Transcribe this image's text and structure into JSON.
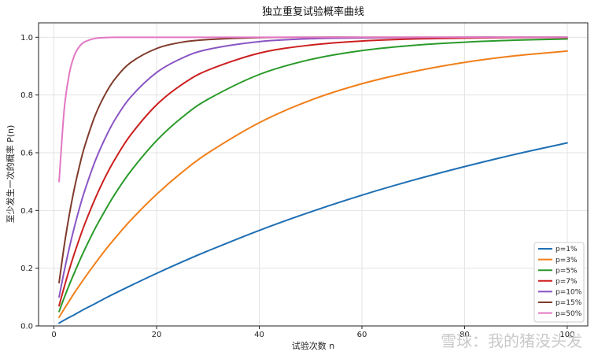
{
  "chart_data": {
    "type": "line",
    "title": "独立重复试验概率曲线",
    "xlabel": "试验次数 n",
    "ylabel": "至少发生一次的概率 P(n)",
    "xlim": [
      -3,
      104
    ],
    "ylim": [
      0,
      1.05
    ],
    "xticks": [
      0,
      20,
      40,
      60,
      80,
      100
    ],
    "yticks": [
      0.0,
      0.2,
      0.4,
      0.6,
      0.8,
      1.0
    ],
    "xtick_labels": [
      "0",
      "20",
      "40",
      "60",
      "80",
      "100"
    ],
    "ytick_labels": [
      "0.0",
      "0.2",
      "0.4",
      "0.6",
      "0.8",
      "1.0"
    ],
    "grid": true,
    "legend_position": "lower-right",
    "x": [
      1,
      2,
      3,
      4,
      5,
      6,
      8,
      10,
      12,
      15,
      20,
      25,
      30,
      40,
      50,
      60,
      70,
      80,
      90,
      100
    ],
    "series": [
      {
        "name": "p=1%",
        "color": "#1f6fb4",
        "values": [
          0.01,
          0.02,
          0.03,
          0.039,
          0.049,
          0.059,
          0.077,
          0.096,
          0.114,
          0.14,
          0.182,
          0.222,
          0.26,
          0.331,
          0.395,
          0.453,
          0.505,
          0.552,
          0.595,
          0.634
        ]
      },
      {
        "name": "p=3%",
        "color": "#f07f1a",
        "values": [
          0.03,
          0.059,
          0.087,
          0.115,
          0.141,
          0.167,
          0.216,
          0.263,
          0.306,
          0.367,
          0.456,
          0.533,
          0.599,
          0.704,
          0.782,
          0.839,
          0.881,
          0.913,
          0.936,
          0.952
        ]
      },
      {
        "name": "p=5%",
        "color": "#2a9a2a",
        "values": [
          0.05,
          0.098,
          0.143,
          0.185,
          0.226,
          0.265,
          0.337,
          0.401,
          0.46,
          0.537,
          0.642,
          0.723,
          0.785,
          0.871,
          0.923,
          0.954,
          0.972,
          0.983,
          0.99,
          0.994
        ]
      },
      {
        "name": "p=7%",
        "color": "#cc1f1f",
        "values": [
          0.07,
          0.135,
          0.196,
          0.252,
          0.304,
          0.353,
          0.44,
          0.516,
          0.581,
          0.663,
          0.766,
          0.837,
          0.886,
          0.945,
          0.973,
          0.987,
          0.994,
          0.997,
          0.999,
          0.999
        ]
      },
      {
        "name": "p=10%",
        "color": "#8a55c4",
        "values": [
          0.1,
          0.19,
          0.271,
          0.344,
          0.41,
          0.469,
          0.57,
          0.651,
          0.718,
          0.794,
          0.878,
          0.928,
          0.958,
          0.985,
          0.995,
          0.998,
          0.999,
          1.0,
          1.0,
          1.0
        ]
      },
      {
        "name": "p=15%",
        "color": "#7f3b2c",
        "values": [
          0.15,
          0.278,
          0.386,
          0.478,
          0.556,
          0.623,
          0.728,
          0.803,
          0.858,
          0.913,
          0.961,
          0.983,
          0.992,
          0.999,
          1.0,
          1.0,
          1.0,
          1.0,
          1.0,
          1.0
        ]
      },
      {
        "name": "p=50%",
        "color": "#e377c2",
        "values": [
          0.5,
          0.75,
          0.875,
          0.938,
          0.969,
          0.984,
          0.996,
          0.999,
          1.0,
          1.0,
          1.0,
          1.0,
          1.0,
          1.0,
          1.0,
          1.0,
          1.0,
          1.0,
          1.0,
          1.0
        ]
      }
    ]
  },
  "watermark": {
    "text": "雪球：我的猪没头发"
  }
}
